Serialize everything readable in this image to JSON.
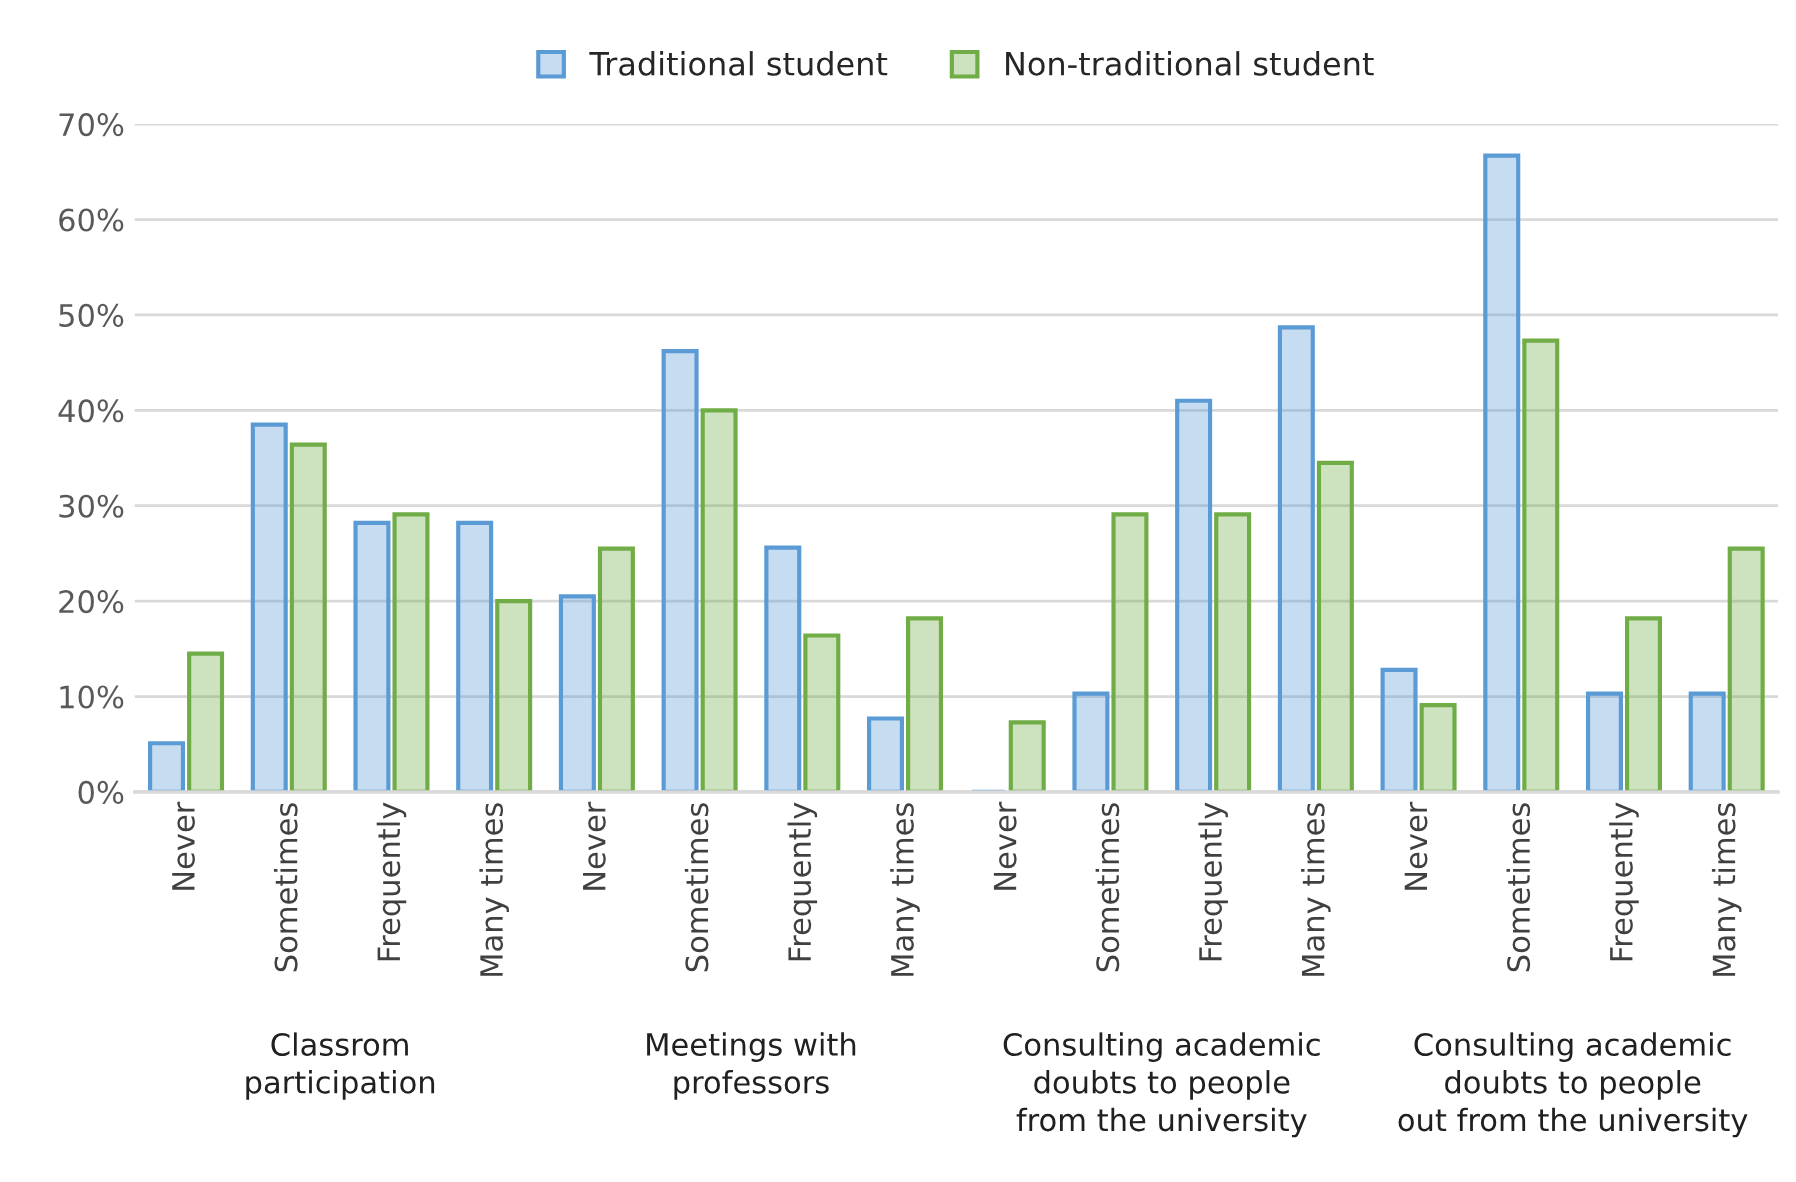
{
  "chart_data": {
    "type": "bar",
    "categories": [
      "Never",
      "Sometimes",
      "Frequently",
      "Many times",
      "Never",
      "Sometimes",
      "Frequently",
      "Many times",
      "Never",
      "Sometimes",
      "Frequently",
      "Many times",
      "Never",
      "Sometimes",
      "Frequently",
      "Many times"
    ],
    "series": [
      {
        "name": "Traditional student",
        "color": "#5b9bd5",
        "values": [
          5.1,
          38.5,
          28.2,
          28.2,
          20.5,
          46.2,
          25.6,
          7.7,
          0,
          10.3,
          41.0,
          48.7,
          12.8,
          66.7,
          10.3,
          10.3
        ]
      },
      {
        "name": "Non-traditional student",
        "color": "#70ad47",
        "values": [
          14.5,
          36.4,
          29.1,
          20.0,
          25.5,
          40.0,
          16.4,
          18.2,
          7.3,
          29.1,
          29.1,
          34.5,
          9.1,
          47.3,
          18.2,
          25.5
        ]
      }
    ],
    "annotations": [
      "Classrom\nparticipation",
      "Meetings with\nprofessors",
      "Consulting academic\ndoubts to people\nfrom the university",
      "Consulting academic\ndoubts to people\nout from the university"
    ],
    "ylim": [
      0,
      70
    ],
    "yticks": [
      {
        "value": 0,
        "label": "0%"
      },
      {
        "value": 10,
        "label": "10%"
      },
      {
        "value": 20,
        "label": "20%"
      },
      {
        "value": 30,
        "label": "30%"
      },
      {
        "value": 40,
        "label": "40%"
      },
      {
        "value": 50,
        "label": "50%"
      },
      {
        "value": 60,
        "label": "60%"
      },
      {
        "value": 70,
        "label": "70%"
      }
    ],
    "grid": "y",
    "legend": "top"
  }
}
